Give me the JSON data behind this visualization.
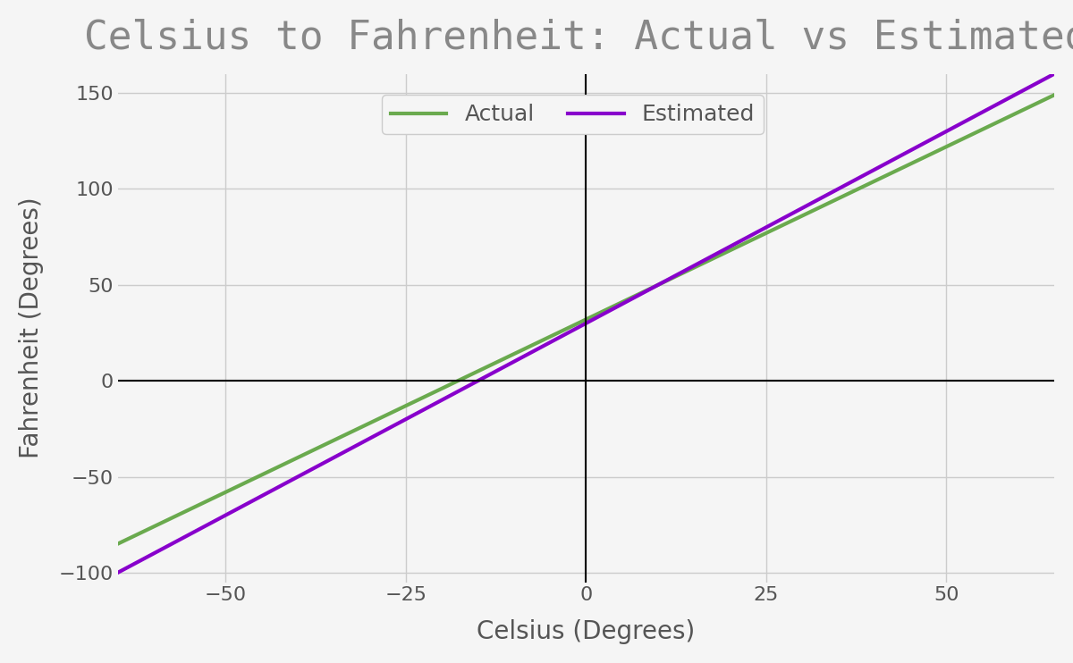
{
  "title": "Celsius to Fahrenheit: Actual vs Estimated",
  "xlabel": "Celsius (Degrees)",
  "ylabel": "Fahrenheit (Degrees)",
  "xlim": [
    -65,
    65
  ],
  "ylim": [
    -105,
    160
  ],
  "x_ticks": [
    -50,
    -25,
    0,
    25,
    50
  ],
  "y_ticks": [
    -100,
    -50,
    0,
    50,
    100,
    150
  ],
  "actual_color": "#6aaa4e",
  "estimated_color": "#8800cc",
  "background_color": "#f5f5f5",
  "grid_color": "#cccccc",
  "title_color": "#888888",
  "title_fontsize": 32,
  "label_fontsize": 20,
  "tick_fontsize": 16,
  "legend_fontsize": 18,
  "line_width": 3,
  "actual_label": "Actual",
  "estimated_label": "Estimated",
  "celsius_range": [
    -65,
    65
  ],
  "actual_slope": 1.8,
  "actual_intercept": 32,
  "estimated_slope": 2.0,
  "estimated_intercept": 30
}
